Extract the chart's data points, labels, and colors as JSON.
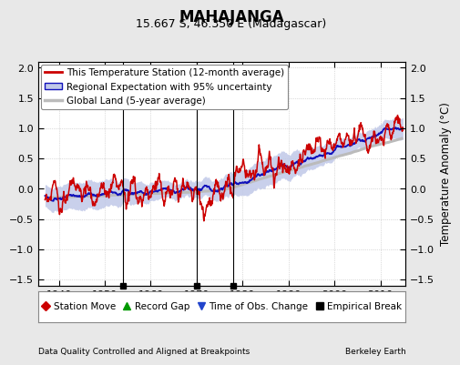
{
  "title": "MAHAJANGA",
  "subtitle": "15.667 S, 46.350 E (Madagascar)",
  "ylabel": "Temperature Anomaly (°C)",
  "xlabel_left": "Data Quality Controlled and Aligned at Breakpoints",
  "xlabel_right": "Berkeley Earth",
  "xlim": [
    1935.5,
    2015.5
  ],
  "ylim": [
    -1.6,
    2.1
  ],
  "yticks": [
    -1.5,
    -1.0,
    -0.5,
    0.0,
    0.5,
    1.0,
    1.5,
    2.0
  ],
  "xticks": [
    1940,
    1950,
    1960,
    1970,
    1980,
    1990,
    2000,
    2010
  ],
  "background_color": "#e8e8e8",
  "plot_bg_color": "#ffffff",
  "red_line_color": "#cc0000",
  "blue_line_color": "#1111bb",
  "blue_fill_color": "#c0c8e8",
  "gray_line_color": "#bbbbbb",
  "empirical_breaks": [
    1954,
    1970,
    1978
  ],
  "legend_entries": [
    "This Temperature Station (12-month average)",
    "Regional Expectation with 95% uncertainty",
    "Global Land (5-year average)"
  ],
  "legend2_entries": [
    "Station Move",
    "Record Gap",
    "Time of Obs. Change",
    "Empirical Break"
  ],
  "title_fontsize": 12,
  "subtitle_fontsize": 9,
  "axis_fontsize": 8,
  "legend_fontsize": 7.5,
  "tick_fontsize": 8
}
